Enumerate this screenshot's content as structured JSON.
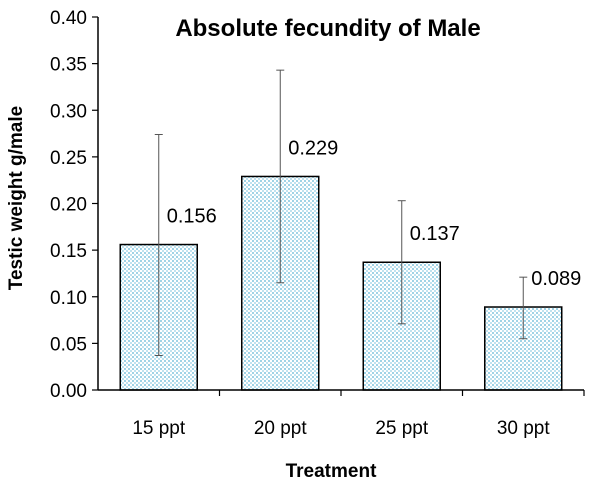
{
  "chart_data": {
    "type": "bar",
    "title": "Absolute fecundity of Male",
    "xlabel": "Treatment",
    "ylabel": "Testic weight g/male",
    "categories": [
      "15 ppt",
      "20 ppt",
      "25 ppt",
      "30 ppt"
    ],
    "values": [
      0.156,
      0.229,
      0.137,
      0.089
    ],
    "data_labels": [
      "0.156",
      "0.229",
      "0.137",
      "0.089"
    ],
    "error_low": [
      0.037,
      0.115,
      0.071,
      0.055
    ],
    "error_high": [
      0.274,
      0.343,
      0.203,
      0.121
    ],
    "ylim": [
      0,
      0.4
    ],
    "yticks": [
      0,
      0.05,
      0.1,
      0.15,
      0.2,
      0.25,
      0.3,
      0.35,
      0.4
    ],
    "ytick_labels": [
      "0.00",
      "0.05",
      "0.10",
      "0.15",
      "0.20",
      "0.25",
      "0.30",
      "0.35",
      "0.40"
    ],
    "grid": false,
    "legend": "none",
    "bar_fill": "#cfe8f2",
    "bar_stroke": "#000000"
  }
}
